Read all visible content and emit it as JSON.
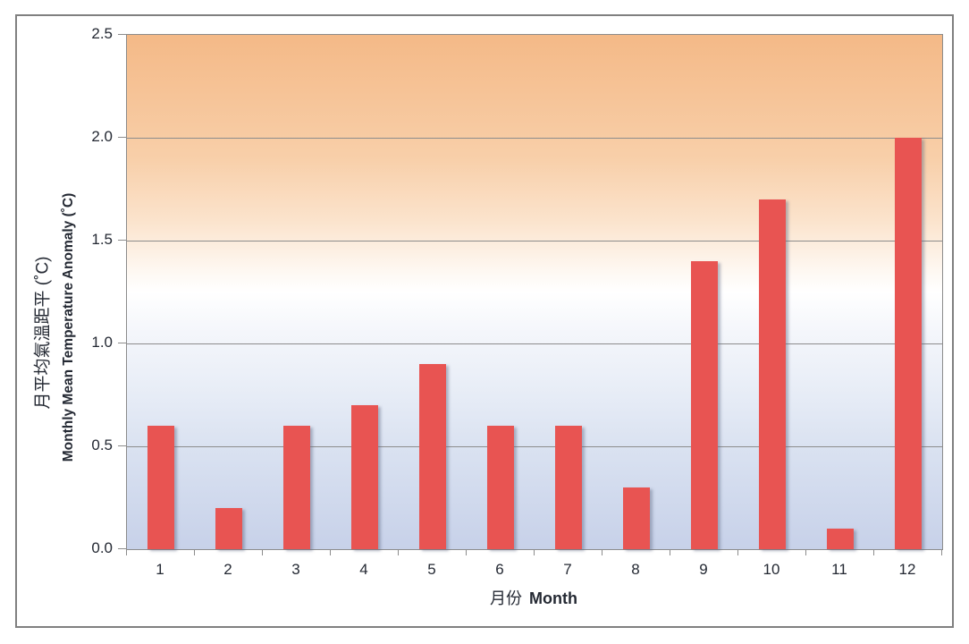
{
  "chart_data": {
    "type": "bar",
    "title": "",
    "categories": [
      "1",
      "2",
      "3",
      "4",
      "5",
      "6",
      "7",
      "8",
      "9",
      "10",
      "11",
      "12"
    ],
    "values": [
      0.6,
      0.2,
      0.6,
      0.7,
      0.9,
      0.6,
      0.6,
      0.3,
      1.4,
      1.7,
      0.1,
      2.0
    ],
    "xlabel": {
      "zh": "月份",
      "en": "Month"
    },
    "ylabel": {
      "zh": "月平均氣溫距平 (˚C)",
      "en": "Monthly Mean Temperature Anomaly (˚C)"
    },
    "ylim": [
      0,
      2.5
    ],
    "ytick_step": 0.5,
    "yticks": [
      "0.0",
      "0.5",
      "1.0",
      "1.5",
      "2.0",
      "2.5"
    ],
    "grid": "horizontal",
    "legend": "none",
    "colors": {
      "bar": "#E85452",
      "gridline": "#8C8C8C",
      "axis": "#8C8C8C",
      "tick_text": "#242933",
      "figure_border": "#808080",
      "plot_bg_top": "#F4B987",
      "plot_bg_mid": "#FFFFFF",
      "plot_bg_bottom": "#C7D1E9"
    }
  }
}
